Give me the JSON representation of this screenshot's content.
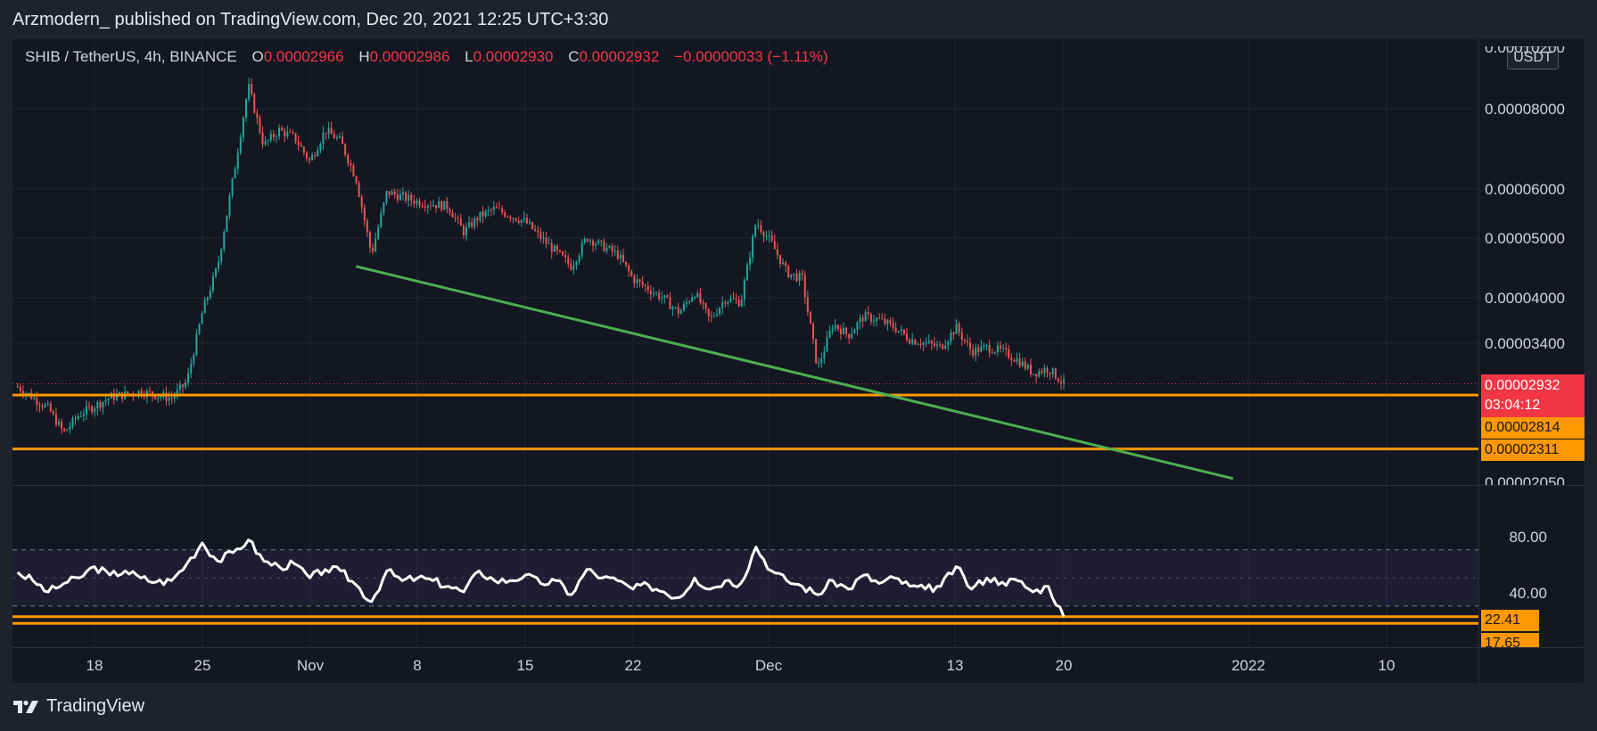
{
  "header": {
    "published_line": "Arzmodern_ published on TradingView.com, Dec 20, 2021 12:25 UTC+3:30"
  },
  "legend": {
    "symbol": "SHIB / TetherUS, 4h, BINANCE",
    "open_label": "O",
    "open": "0.00002966",
    "high_label": "H",
    "high": "0.00002986",
    "low_label": "L",
    "low": "0.00002930",
    "close_label": "C",
    "close": "0.00002932",
    "change": "−0.00000033 (−1.11%)"
  },
  "axis": {
    "unit": "USDT",
    "price_ticks": [
      "0.00008000",
      "0.00006000",
      "0.00005000",
      "0.00004000",
      "0.00003400"
    ],
    "price_top_partial": "0.00010200",
    "price_bottom_partial": "0.00002050",
    "rsi_ticks": [
      "80.00",
      "40.00"
    ],
    "time_ticks": [
      "18",
      "25",
      "Nov",
      "8",
      "15",
      "22",
      "Dec",
      "13",
      "20",
      "2022",
      "10"
    ]
  },
  "badges": {
    "last_price": "0.00002932",
    "countdown": "03:04:12",
    "support_1": "0.00002814",
    "support_2": "0.00002311",
    "rsi_1": "22.41",
    "rsi_2": "17.65"
  },
  "footer": {
    "brand": "TradingView"
  },
  "colors": {
    "up": "#26a69a",
    "down": "#ef5350",
    "support": "#ff9800",
    "trendline": "#4caf50",
    "rsi": "#ffffff",
    "last_price": "#f23645"
  },
  "chart_data": [
    {
      "type": "candlestick",
      "title": "SHIB / TetherUS, 4h, BINANCE",
      "ylabel": "USDT",
      "scale": "log",
      "ylim": [
        2.05e-05,
        0.000102
      ],
      "x_range": [
        "2021-10-13",
        "2022-01-14"
      ],
      "last_close": 2.932e-05,
      "price_path": [
        [
          "2021-10-13",
          2.9e-05
        ],
        [
          "2021-10-15",
          2.68e-05
        ],
        [
          "2021-10-16",
          2.45e-05
        ],
        [
          "2021-10-17",
          2.62e-05
        ],
        [
          "2021-10-19",
          2.79e-05
        ],
        [
          "2021-10-21",
          2.85e-05
        ],
        [
          "2021-10-23",
          2.78e-05
        ],
        [
          "2021-10-24",
          2.95e-05
        ],
        [
          "2021-10-25",
          3.8e-05
        ],
        [
          "2021-10-26",
          4.5e-05
        ],
        [
          "2021-10-27",
          6.2e-05
        ],
        [
          "2021-10-28",
          8.7e-05
        ],
        [
          "2021-10-29",
          7e-05
        ],
        [
          "2021-10-30",
          7.4e-05
        ],
        [
          "2021-10-31",
          7.2e-05
        ],
        [
          "2021-11-01",
          6.6e-05
        ],
        [
          "2021-11-02",
          7.4e-05
        ],
        [
          "2021-11-03",
          7.1e-05
        ],
        [
          "2021-11-04",
          6.2e-05
        ],
        [
          "2021-11-05",
          4.7e-05
        ],
        [
          "2021-11-06",
          5.9e-05
        ],
        [
          "2021-11-08",
          5.7e-05
        ],
        [
          "2021-11-10",
          5.6e-05
        ],
        [
          "2021-11-11",
          5.1e-05
        ],
        [
          "2021-11-12",
          5.4e-05
        ],
        [
          "2021-11-13",
          5.55e-05
        ],
        [
          "2021-11-15",
          5.3e-05
        ],
        [
          "2021-11-16",
          5e-05
        ],
        [
          "2021-11-18",
          4.5e-05
        ],
        [
          "2021-11-19",
          5e-05
        ],
        [
          "2021-11-21",
          4.7e-05
        ],
        [
          "2021-11-22",
          4.3e-05
        ],
        [
          "2021-11-24",
          4e-05
        ],
        [
          "2021-11-25",
          3.8e-05
        ],
        [
          "2021-11-26",
          4.1e-05
        ],
        [
          "2021-11-27",
          3.7e-05
        ],
        [
          "2021-11-28",
          4e-05
        ],
        [
          "2021-11-29",
          3.95e-05
        ],
        [
          "2021-11-30",
          5.3e-05
        ],
        [
          "2021-12-01",
          4.9e-05
        ],
        [
          "2021-12-02",
          4.4e-05
        ],
        [
          "2021-12-03",
          4.3e-05
        ],
        [
          "2021-12-04",
          3.1e-05
        ],
        [
          "2021-12-05",
          3.65e-05
        ],
        [
          "2021-12-06",
          3.5e-05
        ],
        [
          "2021-12-07",
          3.75e-05
        ],
        [
          "2021-12-08",
          3.7e-05
        ],
        [
          "2021-12-09",
          3.6e-05
        ],
        [
          "2021-12-10",
          3.45e-05
        ],
        [
          "2021-12-11",
          3.4e-05
        ],
        [
          "2021-12-12",
          3.35e-05
        ],
        [
          "2021-12-13",
          3.6e-05
        ],
        [
          "2021-12-14",
          3.3e-05
        ],
        [
          "2021-12-15",
          3.35e-05
        ],
        [
          "2021-12-16",
          3.3e-05
        ],
        [
          "2021-12-17",
          3.2e-05
        ],
        [
          "2021-12-18",
          3.05e-05
        ],
        [
          "2021-12-19",
          3.1e-05
        ],
        [
          "2021-12-20",
          2.932e-05
        ]
      ],
      "horizontal_lines": [
        2.814e-05,
        2.311e-05
      ],
      "trendline": [
        [
          "2021-11-04",
          4.5e-05
        ],
        [
          "2021-12-31",
          2.075e-05
        ]
      ]
    },
    {
      "type": "line",
      "title": "RSI",
      "ylim": [
        8,
        95
      ],
      "bands": [
        30,
        70
      ],
      "x_range": [
        "2021-10-13",
        "2022-01-14"
      ],
      "last_value": 22.41,
      "horizontal_lines": [
        22.41,
        17.65
      ],
      "points": [
        [
          "2021-10-13",
          54
        ],
        [
          "2021-10-14",
          48
        ],
        [
          "2021-10-15",
          40
        ],
        [
          "2021-10-16",
          46
        ],
        [
          "2021-10-17",
          50
        ],
        [
          "2021-10-18",
          58
        ],
        [
          "2021-10-19",
          52
        ],
        [
          "2021-10-20",
          55
        ],
        [
          "2021-10-21",
          50
        ],
        [
          "2021-10-22",
          47
        ],
        [
          "2021-10-23",
          48
        ],
        [
          "2021-10-24",
          60
        ],
        [
          "2021-10-25",
          75
        ],
        [
          "2021-10-26",
          62
        ],
        [
          "2021-10-27",
          68
        ],
        [
          "2021-10-28",
          77
        ],
        [
          "2021-10-29",
          62
        ],
        [
          "2021-10-30",
          58
        ],
        [
          "2021-10-31",
          60
        ],
        [
          "2021-11-01",
          50
        ],
        [
          "2021-11-02",
          56
        ],
        [
          "2021-11-03",
          55
        ],
        [
          "2021-11-04",
          45
        ],
        [
          "2021-11-05",
          33
        ],
        [
          "2021-11-06",
          55
        ],
        [
          "2021-11-07",
          48
        ],
        [
          "2021-11-08",
          50
        ],
        [
          "2021-11-09",
          48
        ],
        [
          "2021-11-10",
          44
        ],
        [
          "2021-11-11",
          40
        ],
        [
          "2021-11-12",
          55
        ],
        [
          "2021-11-13",
          48
        ],
        [
          "2021-11-14",
          48
        ],
        [
          "2021-11-15",
          52
        ],
        [
          "2021-11-16",
          46
        ],
        [
          "2021-11-17",
          48
        ],
        [
          "2021-11-18",
          38
        ],
        [
          "2021-11-19",
          56
        ],
        [
          "2021-11-20",
          50
        ],
        [
          "2021-11-21",
          48
        ],
        [
          "2021-11-22",
          42
        ],
        [
          "2021-11-23",
          45
        ],
        [
          "2021-11-24",
          40
        ],
        [
          "2021-11-25",
          36
        ],
        [
          "2021-11-26",
          50
        ],
        [
          "2021-11-27",
          42
        ],
        [
          "2021-11-28",
          48
        ],
        [
          "2021-11-29",
          46
        ],
        [
          "2021-11-30",
          72
        ],
        [
          "2021-12-01",
          55
        ],
        [
          "2021-12-02",
          48
        ],
        [
          "2021-12-03",
          44
        ],
        [
          "2021-12-04",
          38
        ],
        [
          "2021-12-05",
          48
        ],
        [
          "2021-12-06",
          42
        ],
        [
          "2021-12-07",
          52
        ],
        [
          "2021-12-08",
          46
        ],
        [
          "2021-12-09",
          50
        ],
        [
          "2021-12-10",
          44
        ],
        [
          "2021-12-11",
          42
        ],
        [
          "2021-12-12",
          44
        ],
        [
          "2021-12-13",
          58
        ],
        [
          "2021-12-14",
          42
        ],
        [
          "2021-12-15",
          50
        ],
        [
          "2021-12-16",
          47
        ],
        [
          "2021-12-17",
          48
        ],
        [
          "2021-12-18",
          40
        ],
        [
          "2021-12-19",
          44
        ],
        [
          "2021-12-20",
          22.41
        ]
      ]
    }
  ]
}
